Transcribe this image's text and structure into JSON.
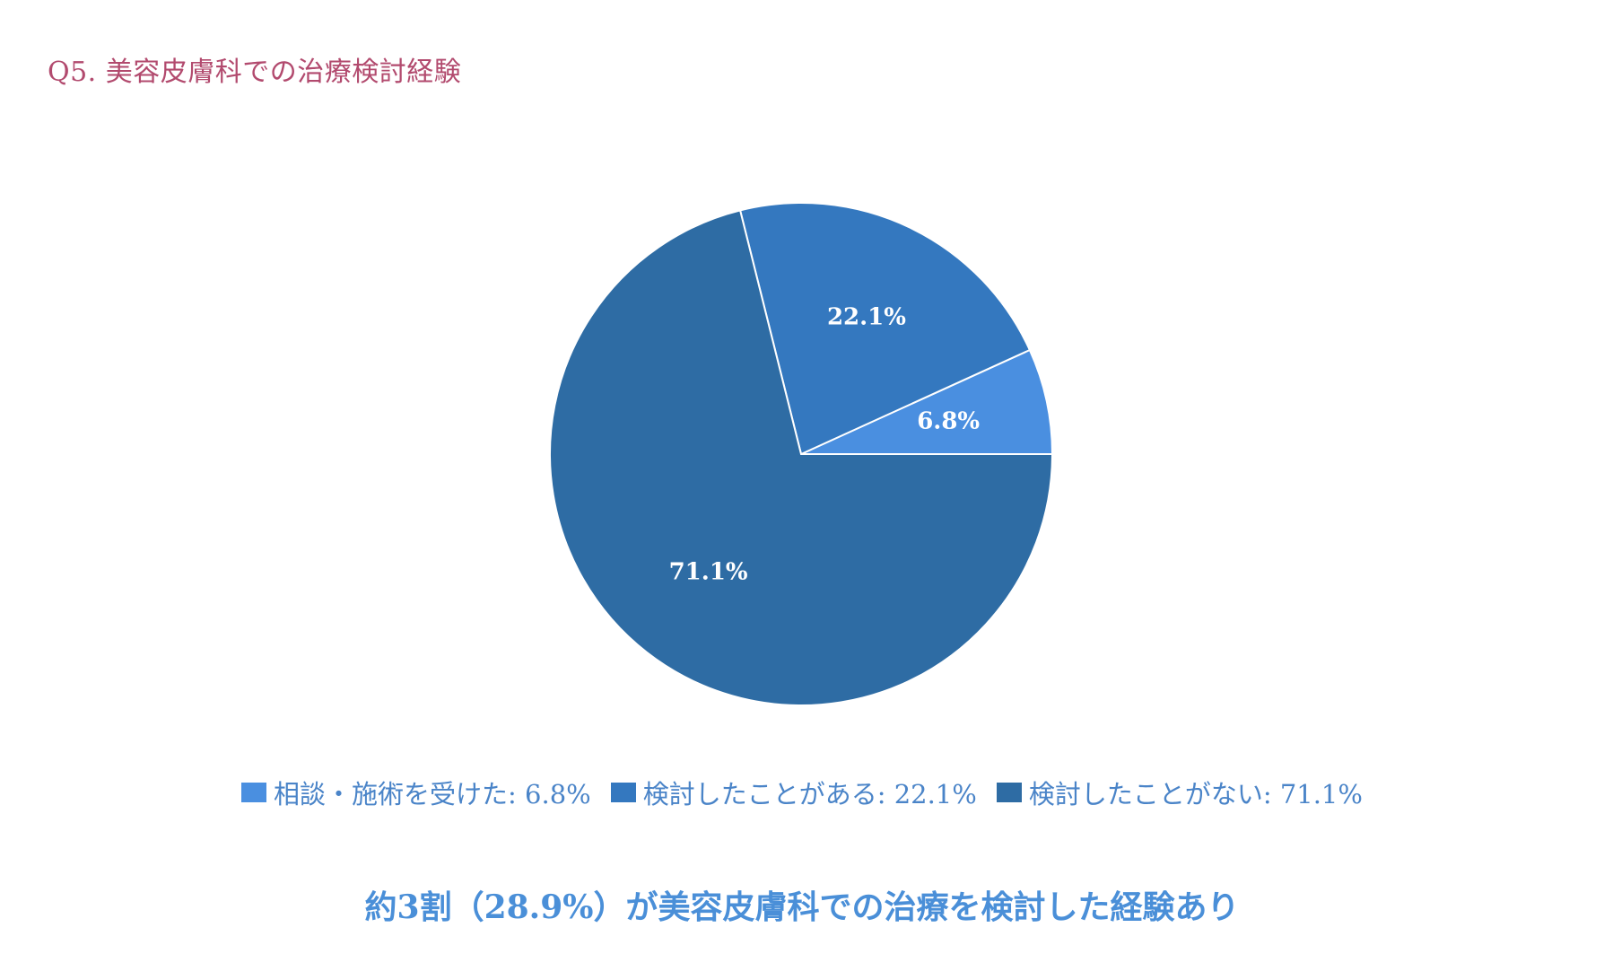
{
  "question_title": "Q5. 美容皮膚科での治療検討経験",
  "conclusion": "約3割（28.9%）が美容皮膚科での治療を検討した経験あり",
  "colors": {
    "title": "#b24a6e",
    "legend_text": "#4a84c8",
    "conclusion": "#4a8fd8",
    "slice_border": "#ffffff",
    "slice_label": "#ffffff"
  },
  "chart_data": {
    "type": "pie",
    "title": "",
    "slices": [
      {
        "name": "相談・施術を受けた",
        "value": 6.8,
        "label": "6.8%",
        "legend": "相談・施術を受けた: 6.8%",
        "color": "#4a8fe0"
      },
      {
        "name": "検討したことがある",
        "value": 22.1,
        "label": "22.1%",
        "legend": "検討したことがある: 22.1%",
        "color": "#3478bf"
      },
      {
        "name": "検討したことがない",
        "value": 71.1,
        "label": "71.1%",
        "legend": "検討したことがない: 71.1%",
        "color": "#2e6ca4"
      }
    ],
    "start": "3 o'clock",
    "direction": "counterclockwise",
    "legend_position": "bottom"
  }
}
